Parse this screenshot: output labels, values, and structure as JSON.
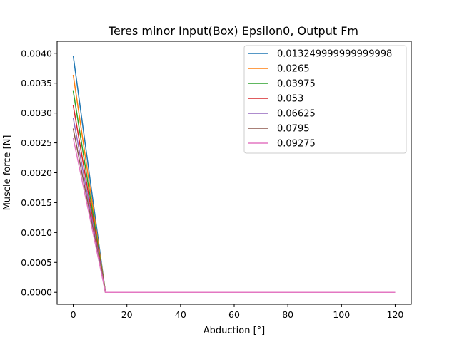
{
  "chart_data": {
    "type": "line",
    "title": "Teres minor Input(Box) Epsilon0, Output Fm",
    "xlabel": "Abduction [°]",
    "ylabel": "Muscle force [N]",
    "xlim": [
      -6,
      126
    ],
    "ylim": [
      -0.0002,
      0.0042
    ],
    "xticks": [
      0,
      20,
      40,
      60,
      80,
      100,
      120
    ],
    "xtick_labels": [
      "0",
      "20",
      "40",
      "60",
      "80",
      "100",
      "120"
    ],
    "yticks": [
      0,
      0.0005,
      0.001,
      0.0015,
      0.002,
      0.0025,
      0.003,
      0.0035,
      0.004
    ],
    "ytick_labels": [
      "0.0000",
      "0.0005",
      "0.0010",
      "0.0015",
      "0.0020",
      "0.0025",
      "0.0030",
      "0.0035",
      "0.0040"
    ],
    "grid": false,
    "legend_position": "upper right",
    "x": [
      0,
      12,
      120
    ],
    "series": [
      {
        "name": "0.013249999999999998",
        "color": "#1f77b4",
        "values": [
          0.00396,
          0.0,
          0.0
        ]
      },
      {
        "name": "0.0265",
        "color": "#ff7f0e",
        "values": [
          0.00364,
          0.0,
          0.0
        ]
      },
      {
        "name": "0.03975",
        "color": "#2ca02c",
        "values": [
          0.00337,
          0.0,
          0.0
        ]
      },
      {
        "name": "0.053",
        "color": "#d62728",
        "values": [
          0.00313,
          0.0,
          0.0
        ]
      },
      {
        "name": "0.06625",
        "color": "#9467bd",
        "values": [
          0.00292,
          0.0,
          0.0
        ]
      },
      {
        "name": "0.0795",
        "color": "#8c564b",
        "values": [
          0.00274,
          0.0,
          0.0
        ]
      },
      {
        "name": "0.09275",
        "color": "#e377c2",
        "values": [
          0.00258,
          0.0,
          0.0
        ]
      }
    ]
  }
}
